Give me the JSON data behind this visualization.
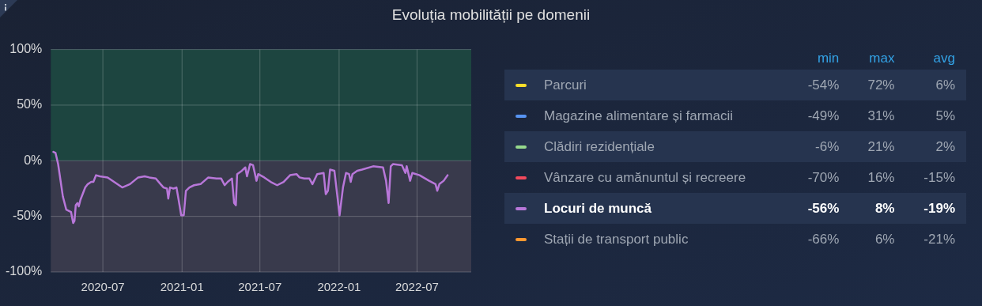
{
  "chart_data": {
    "type": "line",
    "title": "Evoluția mobilității pe domenii",
    "x": [
      "2020-03-08",
      "2020-03-13",
      "2020-03-19",
      "2020-03-30",
      "2020-04-07",
      "2020-04-18",
      "2020-04-20",
      "2020-04-23",
      "2020-04-26",
      "2020-04-29",
      "2020-05-03",
      "2020-05-06",
      "2020-05-10",
      "2020-05-15",
      "2020-05-21",
      "2020-05-27",
      "2020-06-04",
      "2020-06-09",
      "2020-06-15",
      "2020-06-24",
      "2020-07-12",
      "2020-07-27",
      "2020-08-15",
      "2020-09-02",
      "2020-09-21",
      "2020-10-06",
      "2020-10-17",
      "2020-11-01",
      "2020-11-12",
      "2020-11-19",
      "2020-11-27",
      "2020-11-30",
      "2020-12-04",
      "2020-12-12",
      "2020-12-19",
      "2020-12-24",
      "2020-12-30",
      "2021-01-05",
      "2021-01-10",
      "2021-01-18",
      "2021-01-29",
      "2021-02-13",
      "2021-03-03",
      "2021-03-22",
      "2021-04-02",
      "2021-04-10",
      "2021-04-17",
      "2021-04-27",
      "2021-05-02",
      "2021-05-06",
      "2021-05-09",
      "2021-05-20",
      "2021-05-28",
      "2021-06-01",
      "2021-06-08",
      "2021-06-15",
      "2021-06-23",
      "2021-06-27",
      "2021-07-11",
      "2021-07-26",
      "2021-08-10",
      "2021-08-25",
      "2021-09-09",
      "2021-09-24",
      "2021-10-01",
      "2021-10-12",
      "2021-10-24",
      "2021-10-31",
      "2021-11-11",
      "2021-11-26",
      "2021-12-01",
      "2021-12-06",
      "2021-12-11",
      "2021-12-21",
      "2021-12-28",
      "2022-01-02",
      "2022-01-10",
      "2022-01-17",
      "2022-01-24",
      "2022-01-28",
      "2022-02-01",
      "2022-02-12",
      "2022-02-23",
      "2022-03-21",
      "2022-04-13",
      "2022-04-20",
      "2022-04-26",
      "2022-05-01",
      "2022-05-06",
      "2022-05-27",
      "2022-06-04",
      "2022-06-07",
      "2022-06-15",
      "2022-06-20",
      "2022-07-07",
      "2022-07-29",
      "2022-08-13",
      "2022-08-17",
      "2022-08-22",
      "2022-09-01",
      "2022-09-10"
    ],
    "series": [
      {
        "name": "Parcuri",
        "color": "#fade2a",
        "values": [
          null,
          null,
          null,
          null,
          null,
          null,
          null,
          null,
          null,
          null,
          null,
          null,
          null,
          null,
          null,
          null,
          null,
          null,
          null,
          null,
          null,
          null,
          null,
          null,
          null,
          null,
          null,
          null,
          null,
          null,
          null,
          null,
          null,
          null,
          null,
          null,
          null,
          null,
          null,
          null,
          null,
          null,
          null,
          null,
          null,
          null,
          null,
          null,
          null,
          null,
          null,
          null,
          null,
          null,
          null,
          null,
          null,
          null,
          null,
          null,
          null,
          null,
          null,
          null,
          null,
          null,
          null,
          null,
          null,
          null,
          null,
          null,
          null,
          null,
          null,
          null,
          null,
          null,
          null,
          null,
          null,
          null,
          null,
          null,
          null,
          null,
          null,
          null,
          null,
          null,
          null,
          null,
          null,
          null,
          null,
          null,
          null,
          null,
          null,
          null,
          null
        ]
      },
      {
        "name": "Magazine alimentare și farmacii",
        "color": "#5794f2",
        "values": [
          null,
          null,
          null,
          null,
          null,
          null,
          null,
          null,
          null,
          null,
          null,
          null,
          null,
          null,
          null,
          null,
          null,
          null,
          null,
          null,
          null,
          null,
          null,
          null,
          null,
          null,
          null,
          null,
          null,
          null,
          null,
          null,
          null,
          null,
          null,
          null,
          null,
          null,
          null,
          null,
          null,
          null,
          null,
          null,
          null,
          null,
          null,
          null,
          null,
          null,
          null,
          null,
          null,
          null,
          null,
          null,
          null,
          null,
          null,
          null,
          null,
          null,
          null,
          null,
          null,
          null,
          null,
          null,
          null,
          null,
          null,
          null,
          null,
          null,
          null,
          null,
          null,
          null,
          null,
          null,
          null,
          null,
          null,
          null,
          null,
          null,
          null,
          null,
          null,
          null,
          null,
          null,
          null,
          null,
          null,
          null,
          null,
          null,
          null,
          null,
          null
        ]
      },
      {
        "name": "Clădiri rezidențiale",
        "color": "#96d98d",
        "values": [
          null,
          null,
          null,
          null,
          null,
          null,
          null,
          null,
          null,
          null,
          null,
          null,
          null,
          null,
          null,
          null,
          null,
          null,
          null,
          null,
          null,
          null,
          null,
          null,
          null,
          null,
          null,
          null,
          null,
          null,
          null,
          null,
          null,
          null,
          null,
          null,
          null,
          null,
          null,
          null,
          null,
          null,
          null,
          null,
          null,
          null,
          null,
          null,
          null,
          null,
          null,
          null,
          null,
          null,
          null,
          null,
          null,
          null,
          null,
          null,
          null,
          null,
          null,
          null,
          null,
          null,
          null,
          null,
          null,
          null,
          null,
          null,
          null,
          null,
          null,
          null,
          null,
          null,
          null,
          null,
          null,
          null,
          null,
          null,
          null,
          null,
          null,
          null,
          null,
          null,
          null,
          null,
          null,
          null,
          null,
          null,
          null,
          null,
          null,
          null,
          null
        ]
      },
      {
        "name": "Vânzare cu amănuntul și recreere",
        "color": "#f2495c",
        "values": [
          null,
          null,
          null,
          null,
          null,
          null,
          null,
          null,
          null,
          null,
          null,
          null,
          null,
          null,
          null,
          null,
          null,
          null,
          null,
          null,
          null,
          null,
          null,
          null,
          null,
          null,
          null,
          null,
          null,
          null,
          null,
          null,
          null,
          null,
          null,
          null,
          null,
          null,
          null,
          null,
          null,
          null,
          null,
          null,
          null,
          null,
          null,
          null,
          null,
          null,
          null,
          null,
          null,
          null,
          null,
          null,
          null,
          null,
          null,
          null,
          null,
          null,
          null,
          null,
          null,
          null,
          null,
          null,
          null,
          null,
          null,
          null,
          null,
          null,
          null,
          null,
          null,
          null,
          null,
          null,
          null,
          null,
          null,
          null,
          null,
          null,
          null,
          null,
          null,
          null,
          null,
          null,
          null,
          null,
          null,
          null,
          null,
          null,
          null,
          null,
          null
        ]
      },
      {
        "name": "Locuri de muncă",
        "color": "#b877d9",
        "values": [
          8,
          7,
          -3,
          -32,
          -44,
          -46,
          -50,
          -56,
          -54,
          -40,
          -38,
          -41,
          -35,
          -30,
          -24,
          -21,
          -19,
          -19,
          -13,
          -14,
          -15,
          -19,
          -24,
          -21,
          -15,
          -14,
          -15,
          -16,
          -21,
          -24,
          -25,
          -34,
          -24,
          -25,
          -24,
          -35,
          -49,
          -49,
          -27,
          -24,
          -22,
          -21,
          -15,
          -16,
          -16,
          -22,
          -19,
          -16,
          -38,
          -40,
          -12,
          -9,
          -6,
          -14,
          -3,
          -4,
          -18,
          -12,
          -15,
          -19,
          -22,
          -19,
          -13,
          -12,
          -15,
          -16,
          -16,
          -21,
          -12,
          -11,
          -30,
          -27,
          -8,
          -9,
          -32,
          -49,
          -24,
          -11,
          -12,
          -19,
          -12,
          -9,
          -8,
          -5,
          -6,
          -18,
          -38,
          -5,
          -3,
          -4,
          -11,
          -5,
          -18,
          -11,
          -13,
          -18,
          -21,
          -27,
          -21,
          -18,
          -13
        ]
      },
      {
        "name": "Stații de transport public",
        "color": "#ff9830",
        "values": [
          null,
          null,
          null,
          null,
          null,
          null,
          null,
          null,
          null,
          null,
          null,
          null,
          null,
          null,
          null,
          null,
          null,
          null,
          null,
          null,
          null,
          null,
          null,
          null,
          null,
          null,
          null,
          null,
          null,
          null,
          null,
          null,
          null,
          null,
          null,
          null,
          null,
          null,
          null,
          null,
          null,
          null,
          null,
          null,
          null,
          null,
          null,
          null,
          null,
          null,
          null,
          null,
          null,
          null,
          null,
          null,
          null,
          null,
          null,
          null,
          null,
          null,
          null,
          null,
          null,
          null,
          null,
          null,
          null,
          null,
          null,
          null,
          null,
          null,
          null,
          null,
          null,
          null,
          null,
          null,
          null,
          null,
          null,
          null,
          null,
          null,
          null,
          null,
          null,
          null,
          null,
          null,
          null,
          null,
          null,
          null,
          null,
          null,
          null,
          null,
          null
        ]
      }
    ],
    "annotations": [
      "min",
      "max",
      "avg",
      "-54%",
      "72%",
      "6%",
      "-49%",
      "31%",
      "5%",
      "-6%",
      "21%",
      "2%",
      "-70%",
      "16%",
      "-15%",
      "-56%",
      "8%",
      "-19%",
      "-66%",
      "6%",
      "-21%"
    ],
    "xlim": [
      "2020-03-02",
      "2022-11-04"
    ],
    "xticks": [
      "2020-07",
      "2021-01",
      "2021-07",
      "2022-01",
      "2022-07"
    ],
    "ylim": [
      -100,
      100
    ],
    "yticks": [
      {
        "value": -100,
        "label": "-100%"
      },
      {
        "value": -50,
        "label": "-50%"
      },
      {
        "value": 0,
        "label": "0%"
      },
      {
        "value": 50,
        "label": "50%"
      },
      {
        "value": 100,
        "label": "100%"
      }
    ],
    "bands": [
      {
        "axis": "y",
        "from": 0,
        "to": 100,
        "color": "#1d4540"
      },
      {
        "axis": "y",
        "from": -100,
        "to": 0,
        "color": "#393a4c"
      }
    ],
    "grid": true,
    "legend": "right",
    "marker": "none",
    "line_style": "solid"
  }
}
